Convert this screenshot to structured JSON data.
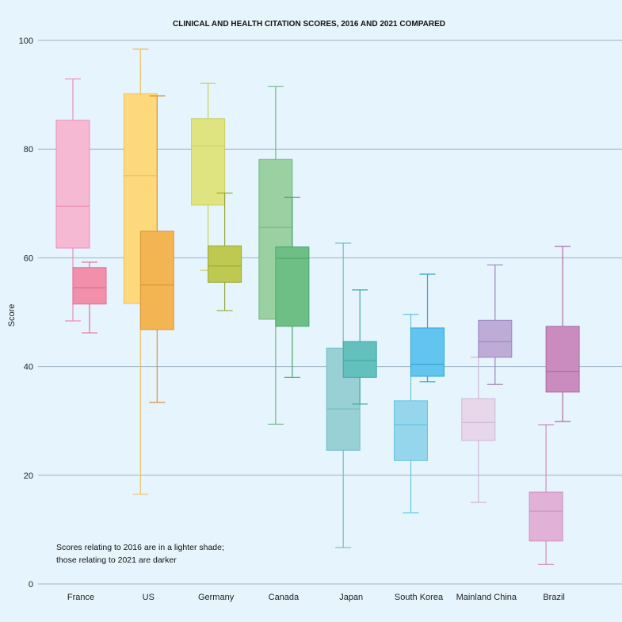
{
  "chart_data": {
    "type": "boxplot",
    "title": "CLINICAL AND HEALTH CITATION SCORES, 2016 AND 2021 COMPARED",
    "xlabel": "",
    "ylabel": "Score",
    "ylim": [
      0,
      100
    ],
    "yticks": [
      0,
      20,
      40,
      60,
      80,
      100
    ],
    "grid": "horizontal",
    "note": [
      "Scores relating to 2016 are in a lighter shade;",
      "those relating to 2021 are darker"
    ],
    "categories": [
      "France",
      "US",
      "Germany",
      "Canada",
      "Japan",
      "South Korea",
      "Mainland China",
      "Brazil"
    ],
    "series": [
      {
        "year": "2016",
        "boxes": [
          {
            "min": 48.4,
            "q1": 61.8,
            "median": 69.5,
            "q3": 85.3,
            "max": 92.9
          },
          {
            "min": 16.5,
            "q1": 51.6,
            "median": 75.1,
            "q3": 90.2,
            "max": 98.4
          },
          {
            "min": 57.7,
            "q1": 69.7,
            "median": 80.6,
            "q3": 85.6,
            "max": 92.1
          },
          {
            "min": 29.4,
            "q1": 48.7,
            "median": 65.6,
            "q3": 78.1,
            "max": 91.5
          },
          {
            "min": 6.7,
            "q1": 24.6,
            "median": 32.2,
            "q3": 43.4,
            "max": 62.7
          },
          {
            "min": 13.1,
            "q1": 22.7,
            "median": 29.3,
            "q3": 33.7,
            "max": 49.6
          },
          {
            "min": 15.0,
            "q1": 26.4,
            "median": 29.7,
            "q3": 34.1,
            "max": 41.7
          },
          {
            "min": 3.6,
            "q1": 7.9,
            "median": 13.4,
            "q3": 16.9,
            "max": 29.3
          }
        ]
      },
      {
        "year": "2021",
        "boxes": [
          {
            "min": 46.2,
            "q1": 51.5,
            "median": 54.5,
            "q3": 58.2,
            "max": 59.2
          },
          {
            "min": 33.4,
            "q1": 46.8,
            "median": 55.0,
            "q3": 64.9,
            "max": 89.8
          },
          {
            "min": 50.3,
            "q1": 55.5,
            "median": 58.5,
            "q3": 62.2,
            "max": 71.9
          },
          {
            "min": 38.0,
            "q1": 47.4,
            "median": 59.9,
            "q3": 62.0,
            "max": 71.1
          },
          {
            "min": 33.1,
            "q1": 38.0,
            "median": 41.1,
            "q3": 44.6,
            "max": 54.1
          },
          {
            "min": 37.2,
            "q1": 38.2,
            "median": 40.4,
            "q3": 47.1,
            "max": 57.0
          },
          {
            "min": 36.7,
            "q1": 41.7,
            "median": 44.6,
            "q3": 48.5,
            "max": 58.7
          },
          {
            "min": 29.9,
            "q1": 35.3,
            "median": 39.1,
            "q3": 47.4,
            "max": 62.1
          }
        ]
      }
    ],
    "colors": {
      "light": [
        "#f6b9d4",
        "#fed97c",
        "#e0e480",
        "#9bd0a2",
        "#98d0d5",
        "#96d6ec",
        "#e8d6eb",
        "#e1b1d7"
      ],
      "dark": [
        "#f290ab",
        "#f3b452",
        "#bdc951",
        "#6dbf86",
        "#64c0bd",
        "#62c5ef",
        "#bfabd7",
        "#ca8cbe"
      ],
      "light_stroke": [
        "#e98fb4",
        "#f0c060",
        "#c8d060",
        "#6fb985",
        "#6fbfc2",
        "#64c5e0",
        "#cfb6d6",
        "#cc8fc1"
      ],
      "dark_stroke": [
        "#e0708f",
        "#d8943a",
        "#98a838",
        "#4ca56a",
        "#3fa8a3",
        "#31a7d6",
        "#9b86be",
        "#ad6ca2"
      ],
      "grid": "#9fb4c4",
      "background": "#e6f4fd"
    }
  }
}
